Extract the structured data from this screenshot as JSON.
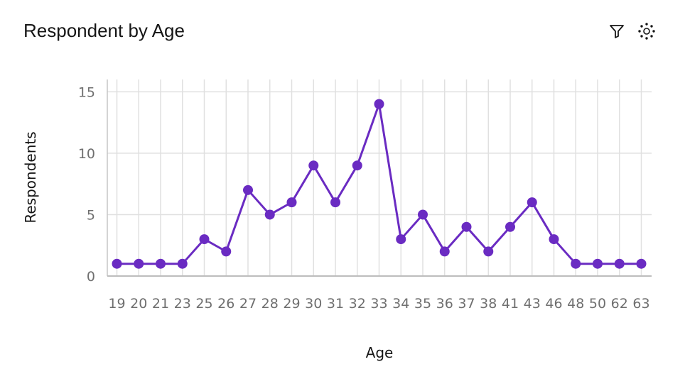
{
  "header": {
    "title": "Respondent by Age",
    "filter_icon": "filter-icon",
    "settings_icon": "settings-icon"
  },
  "chart_data": {
    "type": "line",
    "title": "Respondent by Age",
    "xlabel": "Age",
    "ylabel": "Respondents",
    "categories": [
      "19",
      "20",
      "21",
      "23",
      "25",
      "26",
      "27",
      "28",
      "29",
      "30",
      "31",
      "32",
      "33",
      "34",
      "35",
      "36",
      "37",
      "38",
      "41",
      "43",
      "46",
      "48",
      "50",
      "62",
      "63"
    ],
    "series": [
      {
        "values": [
          1,
          1,
          1,
          1,
          3,
          2,
          7,
          5,
          6,
          9,
          6,
          9,
          14,
          3,
          5,
          2,
          4,
          2,
          4,
          6,
          3,
          1,
          1,
          1,
          1
        ]
      }
    ],
    "ylim": [
      0,
      16
    ],
    "yticks": [
      0,
      5,
      10,
      15
    ],
    "grid": true,
    "line_color": "#6a2bc2"
  }
}
